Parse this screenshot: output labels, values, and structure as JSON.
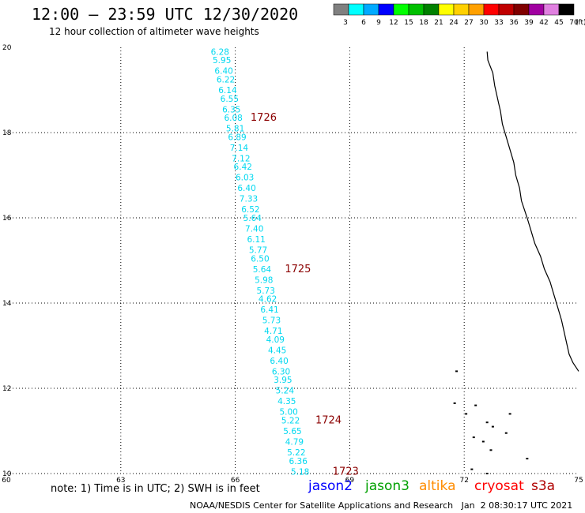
{
  "header": {
    "title": "12:00 – 23:59 UTC 12/30/2020",
    "subtitle": "12 hour collection of altimeter wave heights"
  },
  "legend": {
    "labels": [
      "3",
      "6",
      "9",
      "12",
      "15",
      "18",
      "21",
      "24",
      "27",
      "30",
      "33",
      "36",
      "39",
      "42",
      "45",
      "70"
    ],
    "unit": "(ft)",
    "colors": [
      "#808080",
      "#00ffff",
      "#00aaff",
      "#0000ff",
      "#00ff00",
      "#00c000",
      "#008000",
      "#ffff00",
      "#ffd000",
      "#ffa000",
      "#ff0000",
      "#c00000",
      "#800000",
      "#a000a0",
      "#e080e0",
      "#000000"
    ]
  },
  "chart_data": {
    "type": "scatter",
    "title": "12:00 – 23:59 UTC 12/30/2020",
    "subtitle": "12 hour collection of altimeter wave heights",
    "xlim": [
      60,
      75
    ],
    "ylim": [
      10,
      20
    ],
    "x_ticks": [
      "60",
      "63",
      "66",
      "69",
      "72",
      "75"
    ],
    "y_ticks": [
      "10",
      "12",
      "14",
      "16",
      "18",
      "20"
    ],
    "grid": true,
    "series": [
      {
        "name": "jason2",
        "color": "#00d8f0",
        "points": [
          {
            "lon": 65.6,
            "lat": 19.9,
            "swh": "6.28"
          },
          {
            "lon": 65.65,
            "lat": 19.7,
            "swh": "5.95"
          },
          {
            "lon": 65.7,
            "lat": 19.45,
            "swh": "6.40"
          },
          {
            "lon": 65.75,
            "lat": 19.25,
            "swh": "6.22"
          },
          {
            "lon": 65.8,
            "lat": 19.0,
            "swh": "6.14"
          },
          {
            "lon": 65.85,
            "lat": 18.8,
            "swh": "6.55"
          },
          {
            "lon": 65.9,
            "lat": 18.55,
            "swh": "6.35"
          },
          {
            "lon": 65.95,
            "lat": 18.35,
            "swh": "6.08"
          },
          {
            "lon": 66.0,
            "lat": 18.1,
            "swh": "5.81"
          },
          {
            "lon": 66.05,
            "lat": 17.9,
            "swh": "6.89"
          },
          {
            "lon": 66.1,
            "lat": 17.65,
            "swh": "7.14"
          },
          {
            "lon": 66.15,
            "lat": 17.4,
            "swh": "7.12"
          },
          {
            "lon": 66.2,
            "lat": 17.2,
            "swh": "6.42"
          },
          {
            "lon": 66.25,
            "lat": 16.95,
            "swh": "6.03"
          },
          {
            "lon": 66.3,
            "lat": 16.7,
            "swh": "6.40"
          },
          {
            "lon": 66.35,
            "lat": 16.45,
            "swh": "7.33"
          },
          {
            "lon": 66.4,
            "lat": 16.2,
            "swh": "6.52"
          },
          {
            "lon": 66.45,
            "lat": 16.0,
            "swh": "5.64"
          },
          {
            "lon": 66.5,
            "lat": 15.75,
            "swh": "7.40"
          },
          {
            "lon": 66.55,
            "lat": 15.5,
            "swh": "6.11"
          },
          {
            "lon": 66.6,
            "lat": 15.25,
            "swh": "5.77"
          },
          {
            "lon": 66.65,
            "lat": 15.05,
            "swh": "6.50"
          },
          {
            "lon": 66.7,
            "lat": 14.8,
            "swh": "5.64"
          },
          {
            "lon": 66.75,
            "lat": 14.55,
            "swh": "5.98"
          },
          {
            "lon": 66.8,
            "lat": 14.3,
            "swh": "5.73"
          },
          {
            "lon": 66.85,
            "lat": 14.1,
            "swh": "4.62"
          },
          {
            "lon": 66.9,
            "lat": 13.85,
            "swh": "6.41"
          },
          {
            "lon": 66.95,
            "lat": 13.6,
            "swh": "5.73"
          },
          {
            "lon": 67.0,
            "lat": 13.35,
            "swh": "4.71"
          },
          {
            "lon": 67.05,
            "lat": 13.15,
            "swh": "4.09"
          },
          {
            "lon": 67.1,
            "lat": 12.9,
            "swh": "4.45"
          },
          {
            "lon": 67.15,
            "lat": 12.65,
            "swh": "6.40"
          },
          {
            "lon": 67.2,
            "lat": 12.4,
            "swh": "6.30"
          },
          {
            "lon": 67.25,
            "lat": 12.2,
            "swh": "3.95"
          },
          {
            "lon": 67.3,
            "lat": 11.95,
            "swh": "5.24"
          },
          {
            "lon": 67.35,
            "lat": 11.7,
            "swh": "4.35"
          },
          {
            "lon": 67.4,
            "lat": 11.45,
            "swh": "5.00"
          },
          {
            "lon": 67.45,
            "lat": 11.25,
            "swh": "5.22"
          },
          {
            "lon": 67.5,
            "lat": 11.0,
            "swh": "5.65"
          },
          {
            "lon": 67.55,
            "lat": 10.75,
            "swh": "4.79"
          },
          {
            "lon": 67.6,
            "lat": 10.5,
            "swh": "5.22"
          },
          {
            "lon": 67.65,
            "lat": 10.3,
            "swh": "6.36"
          },
          {
            "lon": 67.7,
            "lat": 10.05,
            "swh": "5.18"
          }
        ]
      }
    ],
    "passes": [
      {
        "label": "1726",
        "lon": 66.4,
        "lat": 18.35
      },
      {
        "label": "1725",
        "lon": 67.3,
        "lat": 14.8
      },
      {
        "label": "1724",
        "lon": 68.1,
        "lat": 11.25
      },
      {
        "label": "1723",
        "lon": 68.55,
        "lat": 10.05
      }
    ],
    "coastline": [
      [
        72.6,
        19.9
      ],
      [
        72.62,
        19.7
      ],
      [
        72.75,
        19.4
      ],
      [
        72.8,
        19.1
      ],
      [
        72.85,
        18.9
      ],
      [
        72.9,
        18.7
      ],
      [
        72.95,
        18.5
      ],
      [
        73.0,
        18.2
      ],
      [
        73.1,
        17.9
      ],
      [
        73.2,
        17.6
      ],
      [
        73.3,
        17.3
      ],
      [
        73.35,
        17.0
      ],
      [
        73.45,
        16.7
      ],
      [
        73.5,
        16.4
      ],
      [
        73.65,
        16.0
      ],
      [
        73.75,
        15.7
      ],
      [
        73.85,
        15.4
      ],
      [
        74.0,
        15.1
      ],
      [
        74.1,
        14.8
      ],
      [
        74.25,
        14.5
      ],
      [
        74.35,
        14.2
      ],
      [
        74.45,
        13.9
      ],
      [
        74.55,
        13.6
      ],
      [
        74.65,
        13.2
      ],
      [
        74.75,
        12.8
      ],
      [
        74.85,
        12.6
      ],
      [
        75.0,
        12.4
      ]
    ],
    "islands": [
      [
        71.8,
        12.4
      ],
      [
        71.75,
        11.65
      ],
      [
        72.05,
        11.4
      ],
      [
        72.6,
        11.2
      ],
      [
        72.25,
        10.85
      ],
      [
        72.5,
        10.75
      ],
      [
        72.75,
        11.1
      ],
      [
        72.7,
        10.55
      ],
      [
        73.1,
        10.95
      ],
      [
        73.65,
        10.35
      ],
      [
        72.2,
        10.1
      ],
      [
        72.6,
        10.0
      ],
      [
        72.3,
        11.6
      ],
      [
        73.2,
        11.4
      ]
    ]
  },
  "footer": {
    "note": "note: 1) Time is in UTC; 2) SWH is in feet",
    "satellites": [
      {
        "name": "jason2",
        "color": "#0000ff"
      },
      {
        "name": "jason3",
        "color": "#00a000"
      },
      {
        "name": "altika",
        "color": "#ff8c00"
      },
      {
        "name": "cryosat",
        "color": "#ff0000"
      },
      {
        "name": "s3a",
        "color": "#b00000"
      }
    ],
    "credit": "NOAA/NESDIS Center for Satellite Applications and Research   Jan  2 08:30:17 UTC 2021"
  }
}
